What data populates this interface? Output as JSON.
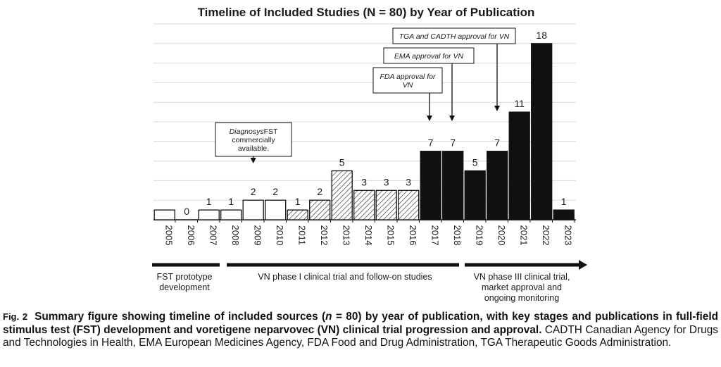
{
  "chart_data": {
    "type": "bar",
    "title": "Timeline of Included Studies (N = 80) by Year of Publication",
    "categories": [
      "2005",
      "2006",
      "2007",
      "2008",
      "2009",
      "2010",
      "2011",
      "2012",
      "2013",
      "2014",
      "2015",
      "2016",
      "2017",
      "2018",
      "2019",
      "2020",
      "2021",
      "2022",
      "2023"
    ],
    "values": [
      1,
      0,
      1,
      1,
      2,
      2,
      1,
      2,
      5,
      3,
      3,
      3,
      7,
      7,
      5,
      7,
      11,
      18,
      1
    ],
    "data_labels": [
      "",
      "0",
      "1",
      "1",
      "2",
      "2",
      "1",
      "2",
      "5",
      "3",
      "3",
      "3",
      "7",
      "7",
      "5",
      "7",
      "11",
      "18",
      "1"
    ],
    "bar_styles": [
      "white",
      "white",
      "white",
      "white",
      "white",
      "white",
      "hatched",
      "hatched",
      "hatched",
      "hatched",
      "hatched",
      "hatched",
      "black",
      "black",
      "black",
      "black",
      "black",
      "black",
      "black"
    ],
    "ylim": [
      0,
      20
    ],
    "grid": true,
    "annotations": [
      {
        "lines": [
          "DiagnosysFST",
          "commercially",
          "available."
        ],
        "italic_prefix": "Diagnosys",
        "points_to": "2009"
      },
      {
        "lines": [
          "FDA approval for",
          "VN"
        ],
        "points_to": "2017"
      },
      {
        "lines": [
          "EMA approval for VN"
        ],
        "points_to": "2018"
      },
      {
        "lines": [
          "TGA and CADTH approval for VN"
        ],
        "points_to": "2020"
      }
    ],
    "stages": [
      {
        "label_lines": [
          "FST prototype",
          "development"
        ],
        "from": "2005",
        "to": "2007"
      },
      {
        "label_lines": [
          "VN phase I clinical trial and follow-on studies"
        ],
        "from": "2008",
        "to": "2018"
      },
      {
        "label_lines": [
          "VN phase III clinical trial,",
          "market approval and",
          "ongoing monitoring"
        ],
        "from": "2019",
        "to": "2023",
        "arrow": true
      }
    ],
    "colors": {
      "white": "#ffffff",
      "black": "#111111",
      "hatch": "#555555",
      "grid": "#d9d9d9",
      "axis": "#111111"
    }
  },
  "caption": {
    "label": "Fig. 2",
    "bold_part1": "Summary figure showing timeline of included sources (",
    "n_symbol": "n",
    "bold_part2": " = 80) by year of publication, with key stages and publications in full-field stimulus test (FST) development and voretigene neparvovec (VN) clinical trial progression and approval.",
    "rest": " CADTH Canadian Agency for Drugs and Technologies in Health, EMA European Medicines Agency, FDA Food and Drug Administration, TGA Therapeutic Goods Administration."
  }
}
